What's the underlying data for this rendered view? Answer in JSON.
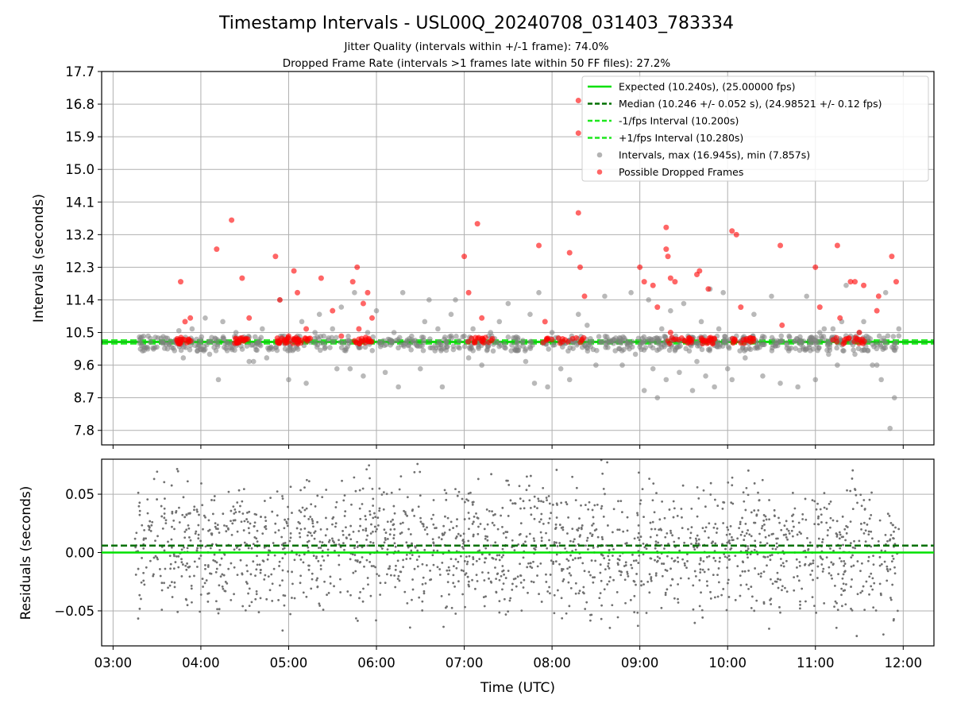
{
  "chart_data": [
    {
      "type": "scatter",
      "title": "Timestamp Intervals - USL00Q_20240708_031403_783334",
      "subtitle_lines": [
        "Jitter Quality (intervals within +/-1 frame): 74.0%",
        "Dropped Frame Rate (intervals >1 frames late within 50 FF files): 27.2%"
      ],
      "xlabel": "",
      "ylabel": "Intervals (seconds)",
      "xlim_hours": [
        2.87,
        12.35
      ],
      "ylim": [
        7.4,
        17.7
      ],
      "yticks": [
        7.8,
        8.7,
        9.6,
        10.5,
        11.4,
        12.3,
        13.2,
        14.1,
        15.0,
        15.9,
        16.8,
        17.7
      ],
      "ytick_labels": [
        "7.8",
        "8.7",
        "9.6",
        "10.5",
        "11.4",
        "12.3",
        "13.2",
        "14.1",
        "15.0",
        "15.9",
        "16.8",
        "17.7"
      ],
      "grid": true,
      "legend_position": "top-right",
      "reference_lines": [
        {
          "label": "Expected (10.240s), (25.00000 fps)",
          "y": 10.24,
          "color": "#00e000",
          "style": "solid"
        },
        {
          "label": "Median (10.246 +/- 0.052 s), (24.98521 +/- 0.12 fps)",
          "y": 10.246,
          "color": "#007000",
          "style": "dashed"
        },
        {
          "label": "-1/fps Interval (10.200s)",
          "y": 10.2,
          "color": "#1ee81e",
          "style": "dashed"
        },
        {
          "label": "+1/fps Interval (10.280s)",
          "y": 10.28,
          "color": "#1ee81e",
          "style": "dashed"
        }
      ],
      "series": [
        {
          "name": "Intervals, max (16.945s), min (7.857s)",
          "color": "#808080",
          "marker": "circle",
          "alpha": 0.55,
          "points": [
            [
              3.4,
              10.4
            ],
            [
              3.5,
              10.1
            ],
            [
              3.6,
              10.35
            ],
            [
              3.7,
              10.0
            ],
            [
              3.75,
              10.55
            ],
            [
              3.8,
              9.8
            ],
            [
              3.9,
              10.6
            ],
            [
              4.0,
              10.3
            ],
            [
              4.05,
              10.9
            ],
            [
              4.1,
              9.9
            ],
            [
              4.2,
              9.2
            ],
            [
              4.25,
              10.8
            ],
            [
              4.3,
              10.0
            ],
            [
              4.4,
              10.5
            ],
            [
              4.5,
              10.3
            ],
            [
              4.55,
              9.7
            ],
            [
              4.6,
              9.7
            ],
            [
              4.7,
              10.6
            ],
            [
              4.75,
              9.8
            ],
            [
              4.8,
              10.1
            ],
            [
              4.9,
              11.4
            ],
            [
              4.95,
              10.4
            ],
            [
              5.0,
              9.2
            ],
            [
              5.1,
              10.4
            ],
            [
              5.15,
              10.8
            ],
            [
              5.2,
              9.1
            ],
            [
              5.3,
              10.5
            ],
            [
              5.35,
              11.0
            ],
            [
              5.4,
              10.4
            ],
            [
              5.5,
              10.6
            ],
            [
              5.55,
              9.5
            ],
            [
              5.6,
              11.2
            ],
            [
              5.65,
              10.0
            ],
            [
              5.7,
              9.5
            ],
            [
              5.75,
              11.6
            ],
            [
              5.8,
              10.1
            ],
            [
              5.85,
              9.3
            ],
            [
              5.9,
              10.5
            ],
            [
              6.0,
              11.1
            ],
            [
              6.1,
              9.4
            ],
            [
              6.2,
              10.5
            ],
            [
              6.25,
              9.0
            ],
            [
              6.3,
              11.6
            ],
            [
              6.4,
              10.3
            ],
            [
              6.5,
              9.5
            ],
            [
              6.55,
              10.8
            ],
            [
              6.6,
              11.4
            ],
            [
              6.7,
              10.6
            ],
            [
              6.75,
              9.0
            ],
            [
              6.8,
              10.1
            ],
            [
              6.85,
              11.0
            ],
            [
              6.9,
              11.4
            ],
            [
              7.0,
              10.4
            ],
            [
              7.05,
              9.8
            ],
            [
              7.1,
              10.6
            ],
            [
              7.2,
              9.6
            ],
            [
              7.3,
              10.5
            ],
            [
              7.4,
              10.8
            ],
            [
              7.5,
              11.3
            ],
            [
              7.6,
              10.0
            ],
            [
              7.7,
              9.7
            ],
            [
              7.75,
              11.0
            ],
            [
              7.8,
              9.1
            ],
            [
              7.85,
              11.6
            ],
            [
              7.9,
              10.2
            ],
            [
              7.95,
              9.0
            ],
            [
              8.0,
              10.5
            ],
            [
              8.1,
              9.5
            ],
            [
              8.2,
              9.2
            ],
            [
              8.3,
              11.0
            ],
            [
              8.4,
              10.7
            ],
            [
              8.5,
              9.6
            ],
            [
              8.6,
              11.5
            ],
            [
              8.7,
              10.2
            ],
            [
              8.8,
              9.6
            ],
            [
              8.9,
              11.6
            ],
            [
              8.95,
              9.9
            ],
            [
              9.0,
              10.1
            ],
            [
              9.05,
              8.9
            ],
            [
              9.1,
              11.4
            ],
            [
              9.15,
              9.5
            ],
            [
              9.2,
              8.7
            ],
            [
              9.25,
              10.6
            ],
            [
              9.3,
              9.2
            ],
            [
              9.35,
              11.1
            ],
            [
              9.4,
              10.0
            ],
            [
              9.45,
              9.4
            ],
            [
              9.5,
              11.3
            ],
            [
              9.55,
              10.4
            ],
            [
              9.6,
              8.9
            ],
            [
              9.65,
              9.7
            ],
            [
              9.7,
              10.8
            ],
            [
              9.75,
              9.3
            ],
            [
              9.8,
              11.7
            ],
            [
              9.85,
              9.0
            ],
            [
              9.9,
              10.6
            ],
            [
              9.95,
              11.6
            ],
            [
              10.0,
              9.5
            ],
            [
              10.05,
              9.2
            ],
            [
              10.1,
              10.4
            ],
            [
              10.2,
              9.8
            ],
            [
              10.3,
              11.0
            ],
            [
              10.4,
              9.3
            ],
            [
              10.5,
              11.5
            ],
            [
              10.55,
              10.2
            ],
            [
              10.6,
              9.1
            ],
            [
              10.7,
              10.4
            ],
            [
              10.8,
              9.0
            ],
            [
              10.9,
              11.5
            ],
            [
              10.95,
              10.3
            ],
            [
              11.0,
              9.2
            ],
            [
              11.05,
              10.5
            ],
            [
              11.1,
              10.6
            ],
            [
              11.15,
              9.9
            ],
            [
              11.2,
              10.6
            ],
            [
              11.25,
              9.6
            ],
            [
              11.3,
              10.8
            ],
            [
              11.35,
              11.8
            ],
            [
              11.4,
              10.4
            ],
            [
              11.45,
              9.9
            ],
            [
              11.5,
              10.5
            ],
            [
              11.55,
              10.8
            ],
            [
              11.6,
              10.0
            ],
            [
              11.65,
              9.6
            ],
            [
              11.7,
              9.6
            ],
            [
              11.75,
              9.2
            ],
            [
              11.8,
              11.6
            ],
            [
              11.85,
              7.857
            ],
            [
              11.9,
              8.7
            ],
            [
              11.95,
              10.6
            ]
          ]
        },
        {
          "name": "Possible Dropped Frames",
          "color": "#ff0000",
          "marker": "circle",
          "alpha": 0.6,
          "points": [
            [
              3.77,
              11.9
            ],
            [
              3.82,
              10.8
            ],
            [
              3.88,
              10.9
            ],
            [
              4.18,
              12.8
            ],
            [
              4.35,
              13.6
            ],
            [
              4.45,
              10.3
            ],
            [
              4.47,
              12.0
            ],
            [
              4.55,
              10.9
            ],
            [
              4.85,
              12.6
            ],
            [
              4.9,
              11.4
            ],
            [
              5.0,
              10.4
            ],
            [
              5.05,
              10.2
            ],
            [
              5.06,
              12.2
            ],
            [
              5.1,
              11.6
            ],
            [
              5.2,
              10.6
            ],
            [
              5.37,
              12.0
            ],
            [
              5.5,
              11.1
            ],
            [
              5.6,
              10.4
            ],
            [
              5.73,
              11.9
            ],
            [
              5.78,
              12.3
            ],
            [
              5.8,
              10.6
            ],
            [
              5.85,
              11.3
            ],
            [
              5.9,
              11.6
            ],
            [
              5.95,
              10.9
            ],
            [
              7.0,
              12.6
            ],
            [
              7.05,
              11.6
            ],
            [
              7.15,
              13.5
            ],
            [
              7.2,
              10.9
            ],
            [
              7.85,
              12.9
            ],
            [
              7.92,
              10.8
            ],
            [
              8.2,
              12.7
            ],
            [
              8.3,
              16.9
            ],
            [
              8.3,
              16.0
            ],
            [
              8.3,
              13.8
            ],
            [
              8.32,
              12.3
            ],
            [
              8.37,
              11.5
            ],
            [
              9.0,
              12.3
            ],
            [
              9.05,
              11.9
            ],
            [
              9.15,
              11.8
            ],
            [
              9.2,
              11.2
            ],
            [
              9.3,
              13.4
            ],
            [
              9.3,
              12.8
            ],
            [
              9.32,
              12.6
            ],
            [
              9.35,
              12.0
            ],
            [
              9.4,
              11.9
            ],
            [
              9.35,
              10.5
            ],
            [
              9.65,
              12.1
            ],
            [
              9.68,
              12.2
            ],
            [
              9.78,
              11.7
            ],
            [
              10.05,
              13.3
            ],
            [
              10.1,
              13.2
            ],
            [
              10.15,
              11.2
            ],
            [
              10.6,
              12.9
            ],
            [
              10.62,
              10.7
            ],
            [
              11.0,
              12.3
            ],
            [
              11.05,
              11.2
            ],
            [
              11.25,
              12.9
            ],
            [
              11.28,
              10.9
            ],
            [
              11.4,
              11.9
            ],
            [
              11.45,
              11.9
            ],
            [
              11.5,
              10.5
            ],
            [
              11.55,
              11.8
            ],
            [
              11.7,
              11.1
            ],
            [
              11.72,
              11.5
            ],
            [
              11.87,
              12.6
            ],
            [
              11.92,
              11.9
            ]
          ]
        }
      ],
      "legend": [
        {
          "label": "Expected (10.240s), (25.00000 fps)",
          "kind": "line",
          "color": "#00e000",
          "style": "solid"
        },
        {
          "label": "Median (10.246 +/- 0.052 s), (24.98521 +/- 0.12 fps)",
          "kind": "line",
          "color": "#007000",
          "style": "dashed"
        },
        {
          "label": "-1/fps Interval (10.200s)",
          "kind": "line",
          "color": "#1ee81e",
          "style": "dashed"
        },
        {
          "label": "+1/fps Interval (10.280s)",
          "kind": "line",
          "color": "#1ee81e",
          "style": "dashed"
        },
        {
          "label": "Intervals, max (16.945s), min (7.857s)",
          "kind": "marker",
          "color": "#808080"
        },
        {
          "label": "Possible Dropped Frames",
          "kind": "marker",
          "color": "#ff0000"
        }
      ]
    },
    {
      "type": "scatter",
      "title": "",
      "xlabel": "Time (UTC)",
      "ylabel": "Residuals (seconds)",
      "xlim_hours": [
        2.87,
        12.35
      ],
      "ylim": [
        -0.08,
        0.08
      ],
      "yticks": [
        -0.05,
        0.0,
        0.05
      ],
      "ytick_labels": [
        "−0.05",
        "0.00",
        "0.05"
      ],
      "xticks_hours": [
        3,
        4,
        5,
        6,
        7,
        8,
        9,
        10,
        11,
        12
      ],
      "xtick_labels": [
        "03:00",
        "04:00",
        "05:00",
        "06:00",
        "07:00",
        "08:00",
        "09:00",
        "10:00",
        "11:00",
        "12:00"
      ],
      "grid": true,
      "reference_lines": [
        {
          "y": 0.0,
          "color": "#00e000",
          "style": "solid"
        },
        {
          "y": 0.006,
          "color": "#007000",
          "style": "dashed"
        }
      ],
      "series": [
        {
          "color": "#707070",
          "marker": "dot",
          "x_range_hours": [
            3.25,
            11.95
          ],
          "count": 1900,
          "y_spread": [
            -0.08,
            0.08
          ]
        }
      ]
    }
  ]
}
